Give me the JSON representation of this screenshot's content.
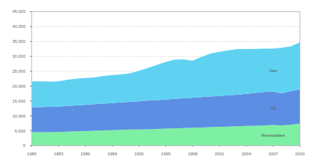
{
  "chart_data": {
    "type": "area",
    "stacked": true,
    "grid": true,
    "x": [
      1980,
      1981,
      1982,
      1983,
      1984,
      1985,
      1986,
      1987,
      1988,
      1989,
      1990,
      1991,
      1992,
      1993,
      1994,
      1995,
      1996,
      1997,
      1998,
      1999,
      2000,
      2001,
      2002,
      2003,
      2004,
      2005,
      2006,
      2007,
      2008,
      2009,
      2010
    ],
    "series": [
      {
        "name": "Renewables",
        "color": "#7df0a4",
        "values": [
          4400,
          4400,
          4450,
          4500,
          4600,
          4700,
          4800,
          4900,
          5000,
          5100,
          5200,
          5300,
          5350,
          5400,
          5500,
          5600,
          5700,
          5800,
          5900,
          6000,
          6100,
          6200,
          6300,
          6400,
          6500,
          6600,
          6700,
          6800,
          6700,
          6900,
          7300
        ]
      },
      {
        "name": "Oil",
        "color": "#5c8ee3",
        "values": [
          8400,
          8400,
          8450,
          8500,
          8600,
          8700,
          8800,
          8900,
          9000,
          9100,
          9200,
          9300,
          9450,
          9600,
          9700,
          9800,
          9900,
          10000,
          10100,
          10200,
          10300,
          10400,
          10500,
          10600,
          10800,
          11000,
          11200,
          11300,
          10800,
          11300,
          11500
        ]
      },
      {
        "name": "Gas",
        "color": "#5fd2f2",
        "values": [
          8700,
          8700,
          8500,
          8500,
          8800,
          9000,
          9000,
          9000,
          9300,
          9400,
          9400,
          9600,
          10200,
          11000,
          11800,
          12600,
          13200,
          13100,
          12400,
          13500,
          14400,
          14800,
          15100,
          15300,
          15100,
          14800,
          14600,
          14400,
          15300,
          15100,
          15700
        ]
      }
    ],
    "xlim": [
      1980,
      2010
    ],
    "xticks": [
      1980,
      1983,
      1986,
      1989,
      1992,
      1995,
      1998,
      2001,
      2004,
      2007,
      2010
    ],
    "ylim": [
      0,
      45000
    ],
    "yticks": [
      0,
      {
        "value": 5000,
        "label": "5,000"
      },
      {
        "value": 10000,
        "label": "10,000"
      },
      {
        "value": 15000,
        "label": "15,000"
      },
      {
        "value": 20000,
        "label": "20,000"
      },
      {
        "value": 25000,
        "label": "25,000"
      },
      {
        "value": 30000,
        "label": "30,000"
      },
      {
        "value": 35000,
        "label": "35,000"
      },
      {
        "value": 40000,
        "label": "40,000"
      },
      {
        "value": 45000,
        "label": "45,000"
      }
    ]
  }
}
